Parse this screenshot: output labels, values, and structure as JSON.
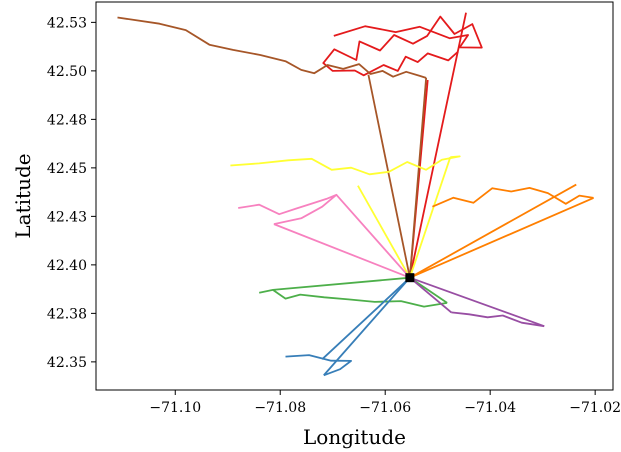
{
  "chart_data": {
    "type": "line",
    "title": "",
    "xlabel": "Longitude",
    "ylabel": "Latitude",
    "xlim": [
      -71.1151,
      -71.0166
    ],
    "ylim": [
      42.3355,
      42.5355
    ],
    "x_ticks": [
      -71.1,
      -71.08,
      -71.06,
      -71.04,
      -71.02
    ],
    "x_tick_labels": [
      "−71.10",
      "−71.08",
      "−71.06",
      "−71.04",
      "−71.02"
    ],
    "y_ticks": [
      42.35,
      42.375,
      42.4,
      42.425,
      42.45,
      42.475,
      42.5,
      42.525
    ],
    "y_tick_labels": [
      "42.35",
      "42.38",
      "42.40",
      "42.43",
      "42.45",
      "42.48",
      "42.50",
      "42.53"
    ],
    "grid": false,
    "origin": {
      "x": -71.0553,
      "y": 42.3934,
      "marker": "square",
      "color": "#000000"
    },
    "series": [
      {
        "color": "#e41a1c",
        "connect": [
          [
            -71.0446,
            42.53
          ],
          [
            -71.0519,
            42.4953
          ]
        ],
        "path": [
          [
            -71.0698,
            42.518
          ],
          [
            -71.0638,
            42.523
          ],
          [
            -71.058,
            42.52
          ],
          [
            -71.0534,
            42.5227
          ],
          [
            -71.0477,
            42.5168
          ],
          [
            -71.0442,
            42.5185
          ],
          [
            -71.0458,
            42.5121
          ],
          [
            -71.0416,
            42.512
          ],
          [
            -71.0434,
            42.5241
          ],
          [
            -71.0468,
            42.519
          ],
          [
            -71.0495,
            42.528
          ],
          [
            -71.052,
            42.518
          ],
          [
            -71.0547,
            42.514
          ],
          [
            -71.0583,
            42.5185
          ],
          [
            -71.061,
            42.5105
          ],
          [
            -71.0649,
            42.5152
          ],
          [
            -71.0655,
            42.5056
          ],
          [
            -71.0697,
            42.5111
          ],
          [
            -71.0718,
            42.504
          ],
          [
            -71.07,
            42.5
          ],
          [
            -71.0658,
            42.5002
          ],
          [
            -71.0641,
            42.4977
          ],
          [
            -71.0603,
            42.503
          ],
          [
            -71.0576,
            42.5
          ],
          [
            -71.0561,
            42.5073
          ],
          [
            -71.0538,
            42.5045
          ],
          [
            -71.0519,
            42.509
          ],
          [
            -71.048,
            42.5054
          ],
          [
            -71.0461,
            42.51
          ]
        ]
      },
      {
        "color": "#a65628",
        "connect": [
          [
            -71.0632,
            42.498
          ],
          [
            -71.0522,
            42.4964
          ]
        ],
        "path": [
          [
            -71.111,
            42.5275
          ],
          [
            -71.103,
            42.5243
          ],
          [
            -71.098,
            42.521
          ],
          [
            -71.0935,
            42.5135
          ],
          [
            -71.089,
            42.5108
          ],
          [
            -71.0838,
            42.5082
          ],
          [
            -71.079,
            42.505
          ],
          [
            -71.076,
            42.5005
          ],
          [
            -71.0735,
            42.4988
          ],
          [
            -71.071,
            42.503
          ],
          [
            -71.068,
            42.501
          ],
          [
            -71.065,
            42.5035
          ],
          [
            -71.0628,
            42.4984
          ],
          [
            -71.0605,
            42.5
          ],
          [
            -71.0585,
            42.497
          ],
          [
            -71.056,
            42.4995
          ],
          [
            -71.0534,
            42.4974
          ],
          [
            -71.0522,
            42.4964
          ]
        ]
      },
      {
        "color": "#ffff33",
        "connect": [
          [
            -71.0652,
            42.4408
          ],
          [
            -71.0476,
            42.4555
          ]
        ],
        "path": [
          [
            -71.0895,
            42.4512
          ],
          [
            -71.084,
            42.4523
          ],
          [
            -71.0785,
            42.4539
          ],
          [
            -71.074,
            42.4547
          ],
          [
            -71.0702,
            42.449
          ],
          [
            -71.0665,
            42.4501
          ],
          [
            -71.063,
            42.4467
          ],
          [
            -71.0593,
            42.448
          ],
          [
            -71.0558,
            42.453
          ],
          [
            -71.0522,
            42.449
          ],
          [
            -71.0492,
            42.4542
          ],
          [
            -71.0458,
            42.4559
          ],
          [
            -71.0476,
            42.4555
          ]
        ]
      },
      {
        "color": "#ff7f00",
        "connect": [
          [
            -71.0236,
            42.4414
          ],
          [
            -71.0203,
            42.4345
          ]
        ],
        "path": [
          [
            -71.051,
            42.43
          ],
          [
            -71.047,
            42.4346
          ],
          [
            -71.0432,
            42.432
          ],
          [
            -71.0396,
            42.4395
          ],
          [
            -71.036,
            42.4378
          ],
          [
            -71.0325,
            42.4397
          ],
          [
            -71.029,
            42.437
          ],
          [
            -71.0256,
            42.4315
          ],
          [
            -71.023,
            42.4357
          ],
          [
            -71.0203,
            42.4345
          ]
        ]
      },
      {
        "color": "#f781bf",
        "connect": [
          [
            -71.0693,
            42.4361
          ],
          [
            -71.0812,
            42.421
          ]
        ],
        "path": [
          [
            -71.088,
            42.4293
          ],
          [
            -71.084,
            42.431
          ],
          [
            -71.0802,
            42.4261
          ],
          [
            -71.077,
            42.429
          ],
          [
            -71.074,
            42.4316
          ],
          [
            -71.0712,
            42.434
          ],
          [
            -71.0693,
            42.4361
          ],
          [
            -71.072,
            42.43
          ],
          [
            -71.076,
            42.424
          ],
          [
            -71.0812,
            42.421
          ]
        ]
      },
      {
        "color": "#4daf4a",
        "connect": [
          [
            -71.0814,
            42.3871
          ],
          [
            -71.0482,
            42.3804
          ]
        ],
        "path": [
          [
            -71.084,
            42.3856
          ],
          [
            -71.0814,
            42.3871
          ],
          [
            -71.079,
            42.3826
          ],
          [
            -71.0762,
            42.3847
          ],
          [
            -71.0716,
            42.3833
          ],
          [
            -71.067,
            42.3822
          ],
          [
            -71.062,
            42.3809
          ],
          [
            -71.057,
            42.3813
          ],
          [
            -71.0526,
            42.3785
          ],
          [
            -71.0482,
            42.3804
          ]
        ]
      },
      {
        "color": "#377eb8",
        "connect": [
          [
            -71.072,
            42.3514
          ],
          [
            -71.0717,
            42.3431
          ]
        ],
        "path": [
          [
            -71.079,
            42.3527
          ],
          [
            -71.0745,
            42.3535
          ],
          [
            -71.0703,
            42.3506
          ],
          [
            -71.0665,
            42.3505
          ],
          [
            -71.0686,
            42.3462
          ],
          [
            -71.0717,
            42.3431
          ]
        ]
      },
      {
        "color": "#984ea3",
        "connect": [
          [
            -71.0474,
            42.3755
          ],
          [
            -71.0297,
            42.3684
          ]
        ],
        "path": [
          [
            -71.0474,
            42.3755
          ],
          [
            -71.044,
            42.3745
          ],
          [
            -71.0405,
            42.373
          ],
          [
            -71.0376,
            42.3739
          ],
          [
            -71.034,
            42.3702
          ],
          [
            -71.0297,
            42.3684
          ]
        ]
      }
    ]
  }
}
